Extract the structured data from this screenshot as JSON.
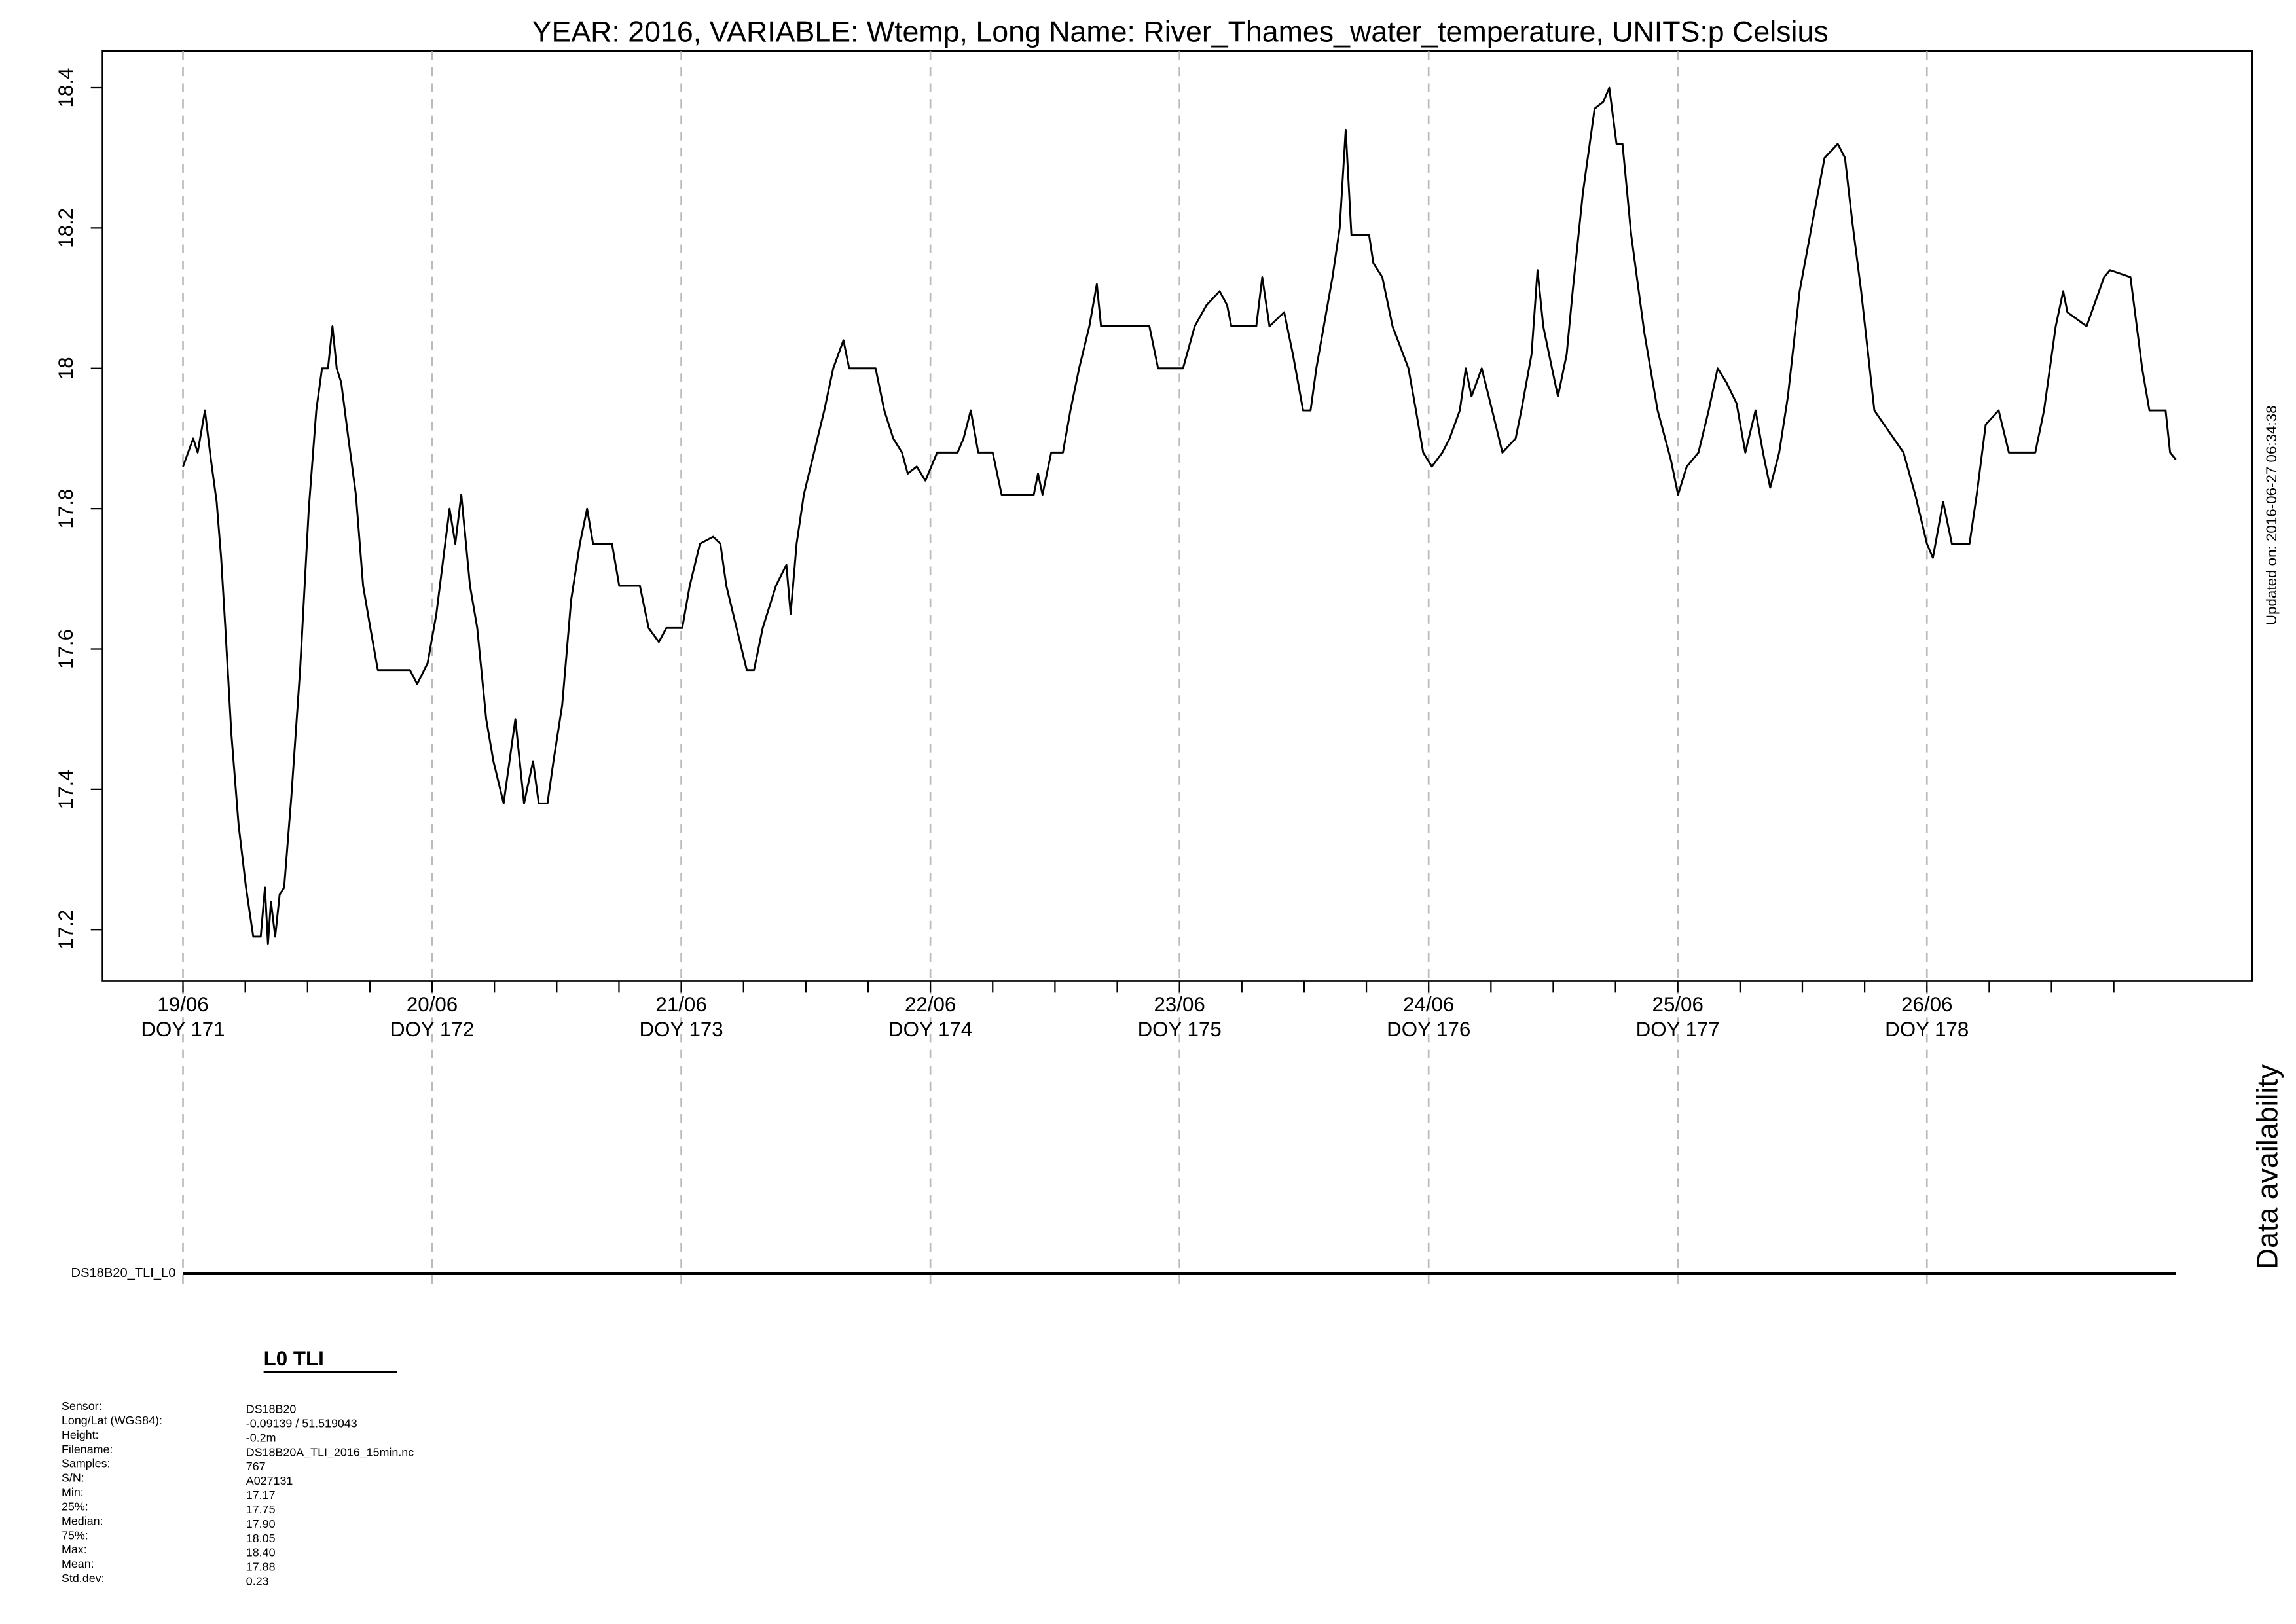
{
  "chart_data": [
    {
      "type": "line",
      "title": "YEAR: 2016, VARIABLE: Wtemp, Long Name: River_Thames_water_temperature, UNITS:p Celsius",
      "note": "Updated on: 2016-06-27 06:34:38",
      "color": "#000000",
      "xlim": [
        170.677,
        179.305
      ],
      "ylim": [
        17.127,
        18.452
      ],
      "yticks": [
        17.2,
        17.4,
        17.6,
        17.8,
        18.0,
        18.2,
        18.4
      ],
      "xticks": [
        {
          "value": 171,
          "label": [
            "19/06",
            "DOY 171"
          ]
        },
        {
          "value": 172,
          "label": [
            "20/06",
            "DOY 172"
          ]
        },
        {
          "value": 173,
          "label": [
            "21/06",
            "DOY 173"
          ]
        },
        {
          "value": 174,
          "label": [
            "22/06",
            "DOY 174"
          ]
        },
        {
          "value": 175,
          "label": [
            "23/06",
            "DOY 175"
          ]
        },
        {
          "value": 176,
          "label": [
            "24/06",
            "DOY 176"
          ]
        },
        {
          "value": 177,
          "label": [
            "25/06",
            "DOY 177"
          ]
        },
        {
          "value": 178,
          "label": [
            "26/06",
            "DOY 178"
          ]
        }
      ],
      "xminorticks": [
        171.25,
        171.5,
        171.75,
        172.25,
        172.5,
        172.75,
        173.25,
        173.5,
        173.75,
        174.25,
        174.5,
        174.75,
        175.25,
        175.5,
        175.75,
        176.25,
        176.5,
        176.75,
        177.25,
        177.5,
        177.75,
        178.25,
        178.5,
        178.75
      ],
      "xgrid": true,
      "x": [
        171.0,
        171.041,
        171.059,
        171.088,
        171.112,
        171.135,
        171.153,
        171.17,
        171.194,
        171.223,
        171.253,
        171.282,
        171.312,
        171.329,
        171.341,
        171.353,
        171.37,
        171.388,
        171.406,
        171.435,
        171.47,
        171.505,
        171.535,
        171.558,
        171.582,
        171.6,
        171.617,
        171.635,
        171.664,
        171.694,
        171.723,
        171.752,
        171.782,
        171.911,
        171.94,
        171.982,
        172.017,
        172.07,
        172.093,
        172.117,
        172.152,
        172.181,
        172.217,
        172.246,
        172.287,
        172.334,
        172.369,
        172.405,
        172.428,
        172.463,
        172.487,
        172.522,
        172.558,
        172.593,
        172.622,
        172.646,
        172.722,
        172.751,
        172.834,
        172.869,
        172.91,
        172.94,
        173.004,
        173.034,
        173.075,
        173.128,
        173.157,
        173.181,
        173.222,
        173.263,
        173.292,
        173.327,
        173.38,
        173.422,
        173.439,
        173.463,
        173.492,
        173.533,
        173.574,
        173.61,
        173.651,
        173.674,
        173.78,
        173.815,
        173.851,
        173.886,
        173.909,
        173.945,
        173.98,
        174.027,
        174.109,
        174.133,
        174.162,
        174.192,
        174.25,
        174.286,
        174.415,
        174.432,
        174.45,
        174.485,
        174.532,
        174.562,
        174.597,
        174.638,
        174.668,
        174.685,
        174.879,
        174.914,
        175.014,
        175.061,
        175.108,
        175.161,
        175.191,
        175.208,
        175.308,
        175.332,
        175.361,
        175.42,
        175.455,
        175.496,
        175.526,
        175.549,
        175.579,
        175.614,
        175.643,
        175.667,
        175.69,
        175.761,
        175.778,
        175.814,
        175.855,
        175.919,
        175.949,
        175.978,
        176.013,
        176.055,
        176.084,
        176.125,
        176.149,
        176.172,
        176.213,
        176.255,
        176.296,
        176.349,
        176.372,
        176.413,
        176.437,
        176.46,
        176.495,
        176.519,
        176.554,
        176.578,
        176.619,
        176.666,
        176.701,
        176.725,
        176.754,
        176.778,
        176.813,
        176.866,
        176.919,
        176.972,
        177.001,
        177.036,
        177.083,
        177.124,
        177.16,
        177.195,
        177.236,
        177.271,
        177.312,
        177.342,
        177.371,
        177.407,
        177.442,
        177.489,
        177.536,
        177.589,
        177.642,
        177.671,
        177.7,
        177.736,
        177.789,
        177.906,
        177.953,
        178.0,
        178.024,
        178.065,
        178.1,
        178.171,
        178.2,
        178.236,
        178.288,
        178.329,
        178.435,
        178.47,
        178.517,
        178.547,
        178.564,
        178.641,
        178.711,
        178.735,
        178.817,
        178.864,
        178.893,
        178.958,
        178.976,
        178.999
      ],
      "values": [
        17.86,
        17.9,
        17.88,
        17.94,
        17.87,
        17.81,
        17.73,
        17.63,
        17.48,
        17.35,
        17.26,
        17.19,
        17.19,
        17.26,
        17.18,
        17.24,
        17.19,
        17.25,
        17.26,
        17.39,
        17.57,
        17.8,
        17.94,
        18.0,
        18.0,
        18.06,
        18.0,
        17.98,
        17.9,
        17.82,
        17.69,
        17.63,
        17.57,
        17.57,
        17.55,
        17.58,
        17.65,
        17.8,
        17.75,
        17.82,
        17.69,
        17.63,
        17.5,
        17.44,
        17.38,
        17.5,
        17.38,
        17.44,
        17.38,
        17.38,
        17.44,
        17.52,
        17.67,
        17.75,
        17.8,
        17.75,
        17.75,
        17.69,
        17.69,
        17.63,
        17.61,
        17.63,
        17.63,
        17.69,
        17.75,
        17.76,
        17.75,
        17.69,
        17.63,
        17.57,
        17.57,
        17.63,
        17.69,
        17.72,
        17.65,
        17.75,
        17.82,
        17.88,
        17.94,
        18.0,
        18.04,
        18.0,
        18.0,
        17.94,
        17.9,
        17.88,
        17.85,
        17.86,
        17.84,
        17.88,
        17.88,
        17.9,
        17.94,
        17.88,
        17.88,
        17.82,
        17.82,
        17.85,
        17.82,
        17.88,
        17.88,
        17.94,
        18.0,
        18.06,
        18.12,
        18.06,
        18.06,
        18.0,
        18.0,
        18.06,
        18.09,
        18.11,
        18.09,
        18.06,
        18.06,
        18.13,
        18.06,
        18.08,
        18.02,
        17.94,
        17.94,
        18.0,
        18.06,
        18.13,
        18.2,
        18.34,
        18.19,
        18.19,
        18.15,
        18.13,
        18.06,
        18.0,
        17.94,
        17.88,
        17.86,
        17.88,
        17.9,
        17.94,
        18.0,
        17.96,
        18.0,
        17.94,
        17.88,
        17.9,
        17.94,
        18.02,
        18.14,
        18.06,
        18.0,
        17.96,
        18.02,
        18.11,
        18.25,
        18.37,
        18.38,
        18.4,
        18.32,
        18.32,
        18.19,
        18.05,
        17.94,
        17.87,
        17.82,
        17.86,
        17.88,
        17.94,
        18.0,
        17.98,
        17.95,
        17.88,
        17.94,
        17.88,
        17.83,
        17.88,
        17.96,
        18.11,
        18.2,
        18.3,
        18.32,
        18.3,
        18.21,
        18.11,
        17.94,
        17.88,
        17.82,
        17.75,
        17.73,
        17.81,
        17.75,
        17.75,
        17.82,
        17.92,
        17.94,
        17.88,
        17.88,
        17.94,
        18.06,
        18.11,
        18.08,
        18.06,
        18.13,
        18.14,
        18.13,
        18.0,
        17.94,
        17.94,
        17.88,
        17.87
      ]
    },
    {
      "type": "availability",
      "title": "Data availability",
      "xlim": [
        170.677,
        179.305
      ],
      "series": [
        {
          "name": "DS18B20_TLI_L0",
          "x": [
            171.0,
            179.0
          ]
        }
      ]
    }
  ],
  "info": {
    "title": "L0 TLI",
    "rows": [
      [
        "Sensor:",
        "DS18B20"
      ],
      [
        "Long/Lat (WGS84):",
        "-0.09139 / 51.519043"
      ],
      [
        "Height:",
        "-0.2m"
      ],
      [
        "Filename:",
        "DS18B20A_TLI_2016_15min.nc"
      ],
      [
        "Samples:",
        "767"
      ],
      [
        "S/N:",
        "A027131"
      ],
      [
        "Min:",
        "17.17"
      ],
      [
        "25%:",
        "17.75"
      ],
      [
        "Median:",
        "17.90"
      ],
      [
        "75%:",
        "18.05"
      ],
      [
        "Max:",
        "18.40"
      ],
      [
        "Mean:",
        "17.88"
      ],
      [
        "Std.dev:",
        "0.23"
      ]
    ]
  }
}
